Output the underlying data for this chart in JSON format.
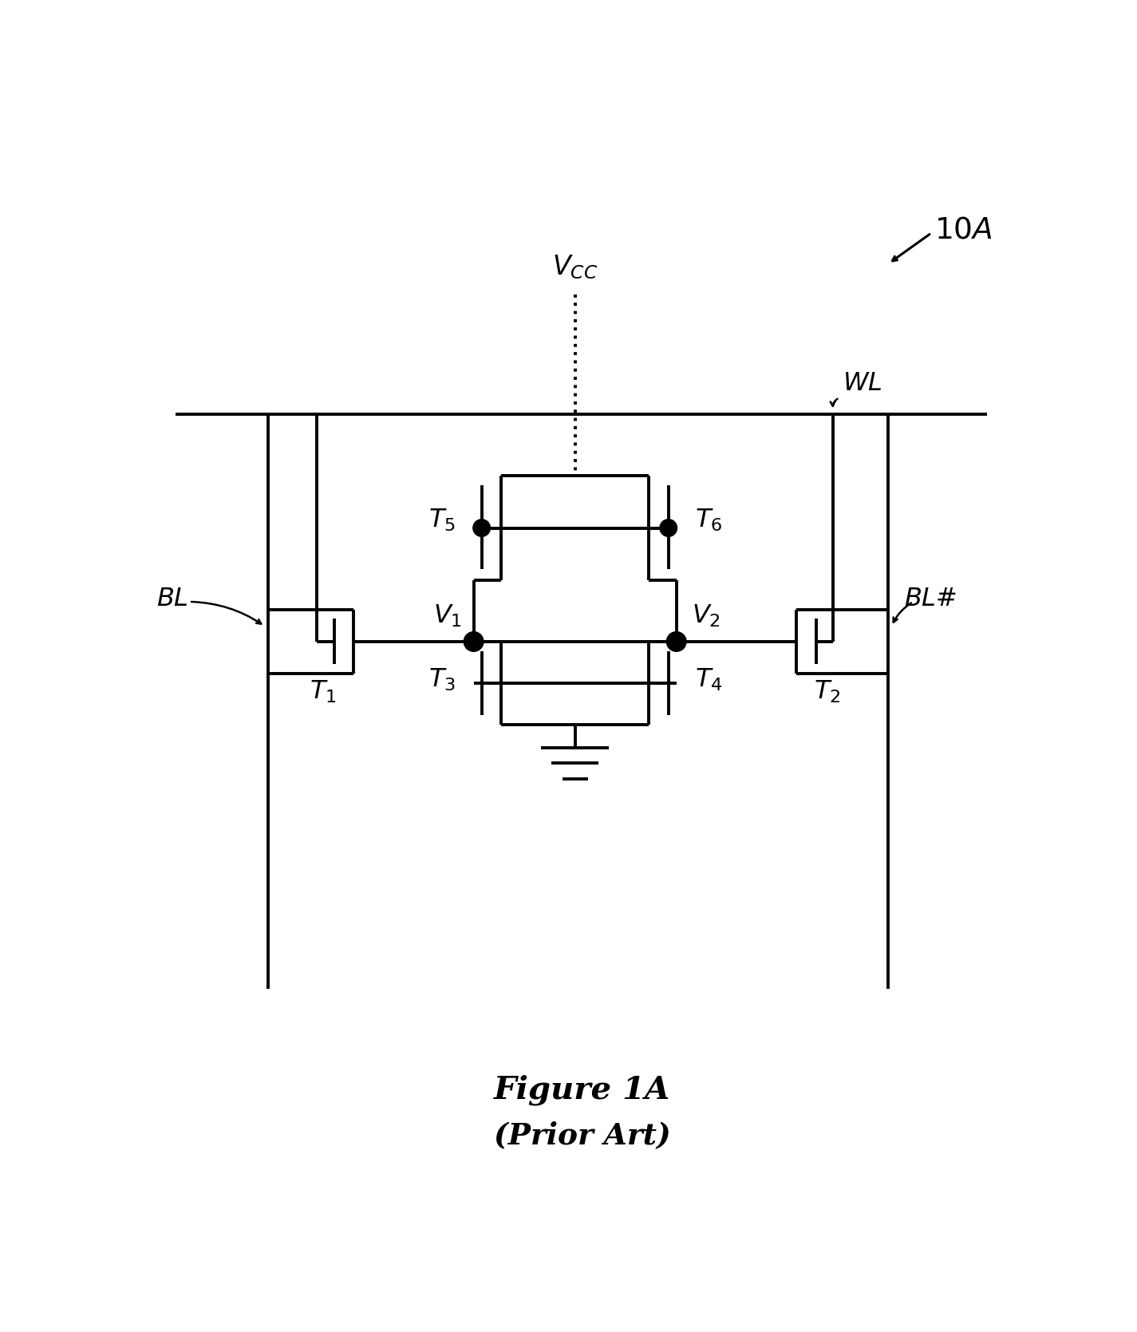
{
  "title_line1": "Figure 1A",
  "title_line2": "(Prior Art)",
  "label_10A": "10A",
  "label_WL": "WL",
  "label_VCC": "V_{CC}",
  "label_BL": "BL",
  "label_BLB": "BL#",
  "label_V1": "V_1",
  "label_V2": "V_2",
  "label_T1": "T_1",
  "label_T2": "T_2",
  "label_T3": "T_3",
  "label_T4": "T_4",
  "label_T5": "T_5",
  "label_T6": "T_6",
  "line_color": "#000000",
  "bg_color": "#ffffff",
  "lw": 2.8
}
